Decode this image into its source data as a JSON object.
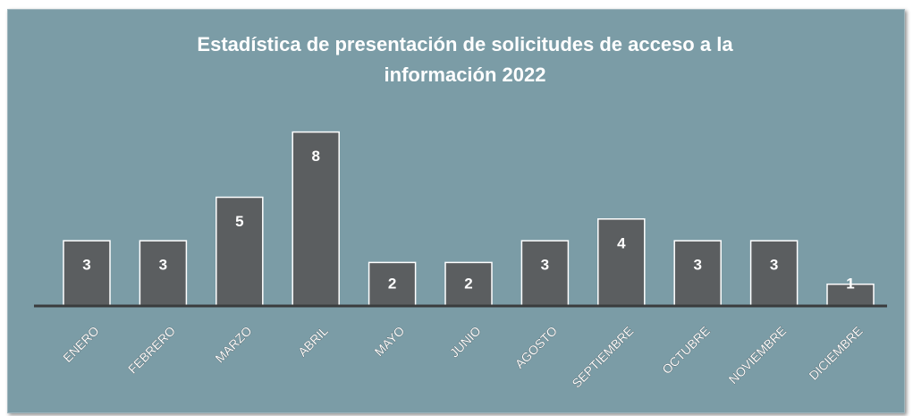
{
  "chart_data": {
    "type": "bar",
    "title": "Estadística de presentación de solicitudes de acceso a la información 2022",
    "categories": [
      "ENERO",
      "FEBRERO",
      "MARZO",
      "ABRIL",
      "MAYO",
      "JUNIO",
      "AGOSTO",
      "SEPTIEMBRE",
      "OCTUBRE",
      "NOVIEMBRE",
      "DICIEMBRE"
    ],
    "values": [
      3,
      3,
      5,
      8,
      2,
      2,
      3,
      4,
      3,
      3,
      1
    ],
    "color": "#5b5e60"
  }
}
